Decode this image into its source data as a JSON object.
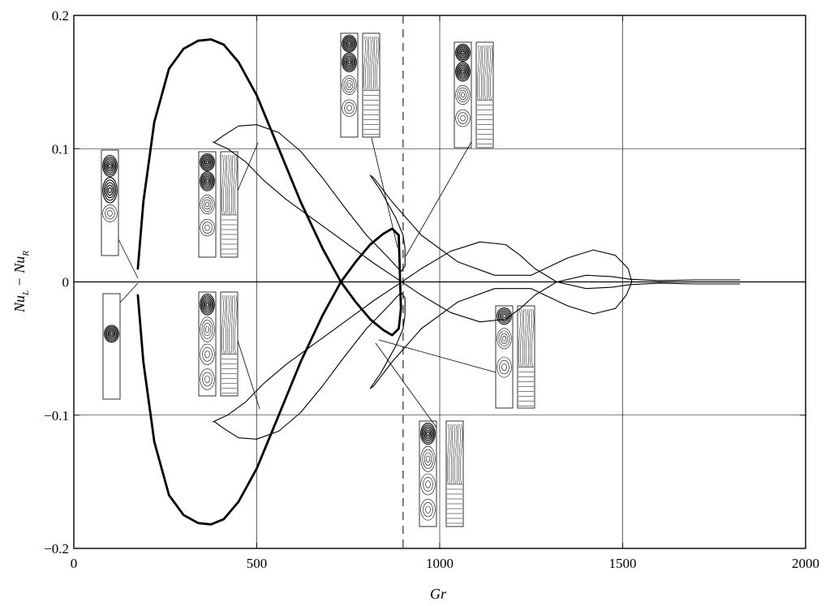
{
  "chart_data": {
    "type": "line",
    "title": "",
    "xlabel": "Gr",
    "ylabel": {
      "main": "Nu",
      "sub_left": "L",
      "mid": " − Nu",
      "sub_right": "R"
    },
    "xlim": [
      0,
      2000
    ],
    "ylim": [
      -0.2,
      0.2
    ],
    "x_ticks": [
      0,
      500,
      1000,
      1500,
      2000
    ],
    "x_tick_labels": [
      "0",
      "500",
      "1000",
      "1500",
      "2000"
    ],
    "y_ticks": [
      -0.2,
      -0.1,
      0,
      0.1,
      0.2
    ],
    "y_tick_labels": [
      "−0.2",
      "−0.1",
      "0",
      "0.1",
      "0.2"
    ],
    "grid": true,
    "grid_x": [
      500,
      1000,
      1500
    ],
    "grid_y": [
      -0.1,
      0,
      0.1
    ],
    "dashed_vline": 900,
    "series": [
      {
        "style": "thick",
        "x": [
          175,
          190,
          220,
          260,
          300,
          340,
          375,
          410,
          450,
          500,
          560,
          620,
          680,
          730,
          770,
          810,
          845,
          870,
          888,
          894,
          888,
          870,
          845,
          810,
          770,
          730,
          680,
          620,
          560,
          500,
          450,
          410,
          375,
          340,
          300,
          260,
          220,
          190,
          175
        ],
        "y": [
          0.01,
          0.06,
          0.12,
          0.16,
          0.175,
          0.181,
          0.182,
          0.178,
          0.165,
          0.14,
          0.1,
          0.06,
          0.025,
          0.0,
          -0.015,
          -0.028,
          -0.036,
          -0.04,
          -0.035,
          -0.02,
          0.035,
          0.04,
          0.036,
          0.028,
          0.015,
          0.0,
          -0.025,
          -0.06,
          -0.1,
          -0.14,
          -0.165,
          -0.178,
          -0.182,
          -0.181,
          -0.175,
          -0.16,
          -0.12,
          -0.06,
          -0.01
        ]
      },
      {
        "style": "thin",
        "x": [
          385,
          410,
          450,
          500,
          560,
          620,
          680,
          740,
          800,
          860,
          880,
          895,
          905,
          905,
          900,
          880,
          840,
          810,
          820,
          870,
          950,
          1050,
          1150,
          1250,
          1350,
          1420,
          1480,
          1515,
          1525,
          1510,
          1480,
          1420,
          1350,
          1250,
          1150,
          1050,
          950,
          870,
          820,
          810,
          840,
          880,
          900,
          905,
          905,
          895,
          880,
          860,
          800,
          740,
          680,
          620,
          560,
          500,
          450,
          410,
          385
        ],
        "y": [
          0.105,
          0.11,
          0.117,
          0.118,
          0.112,
          0.098,
          0.078,
          0.056,
          0.035,
          0.018,
          0.012,
          0.008,
          0.012,
          0.025,
          0.035,
          0.048,
          0.068,
          0.08,
          0.078,
          0.06,
          0.035,
          0.015,
          0.005,
          0.005,
          0.018,
          0.024,
          0.02,
          0.01,
          0.0,
          -0.01,
          -0.02,
          -0.024,
          -0.018,
          -0.005,
          -0.005,
          -0.015,
          -0.035,
          -0.06,
          -0.078,
          -0.08,
          -0.068,
          -0.048,
          -0.035,
          -0.025,
          -0.012,
          -0.008,
          -0.012,
          -0.018,
          -0.035,
          -0.056,
          -0.078,
          -0.098,
          -0.112,
          -0.118,
          -0.117,
          -0.11,
          -0.105
        ]
      },
      {
        "style": "thin",
        "x": [
          380,
          420,
          470,
          520,
          580,
          640,
          700,
          760,
          820,
          880,
          950,
          1030,
          1110,
          1180,
          1220,
          1260,
          1320,
          1400,
          1470,
          1520
        ],
        "y": [
          0.105,
          0.1,
          0.09,
          0.076,
          0.062,
          0.05,
          0.038,
          0.026,
          0.014,
          0.003,
          -0.01,
          -0.023,
          -0.03,
          -0.028,
          -0.02,
          -0.01,
          0.0,
          0.005,
          0.004,
          0.002
        ]
      },
      {
        "style": "thin",
        "x": [
          380,
          420,
          470,
          520,
          580,
          640,
          700,
          760,
          820,
          880,
          950,
          1030,
          1110,
          1180,
          1220,
          1260,
          1320,
          1400,
          1470,
          1520
        ],
        "y": [
          -0.105,
          -0.1,
          -0.09,
          -0.076,
          -0.062,
          -0.05,
          -0.038,
          -0.026,
          -0.014,
          -0.003,
          0.01,
          0.023,
          0.03,
          0.028,
          0.02,
          0.01,
          0.0,
          -0.005,
          -0.004,
          -0.002
        ]
      },
      {
        "style": "thin",
        "x": [
          1520,
          1600,
          1700,
          1820
        ],
        "y": [
          0.002,
          0.001,
          0.0015,
          0.0015
        ]
      },
      {
        "style": "thin",
        "x": [
          1520,
          1600,
          1700,
          1820
        ],
        "y": [
          -0.002,
          -0.001,
          -0.0015,
          -0.0015
        ]
      }
    ]
  }
}
